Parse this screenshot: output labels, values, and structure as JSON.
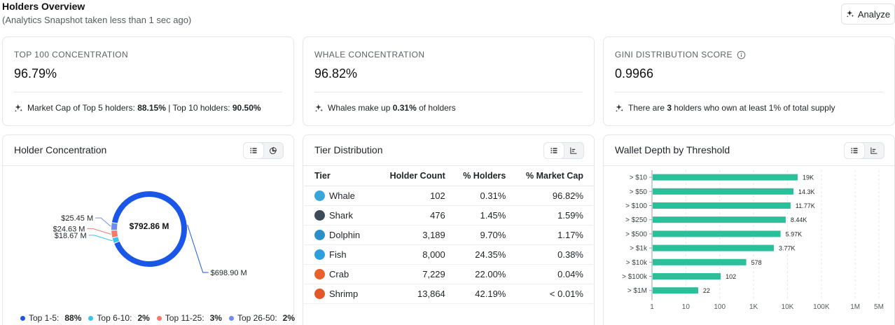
{
  "header": {
    "title": "Holders Overview",
    "subtitle": "(Analytics Snapshot taken less than 1 sec ago)",
    "analyze_label": "Analyze"
  },
  "stats": [
    {
      "label": "TOP 100 CONCENTRATION",
      "value": "96.79%",
      "note": {
        "t1": "Market Cap of Top 5 holders: ",
        "b1": "88.15%",
        "t2": " | Top 10 holders: ",
        "b2": "90.50%",
        "t3": ""
      }
    },
    {
      "label": "WHALE CONCENTRATION",
      "value": "96.82%",
      "note": {
        "t1": "Whales make up ",
        "b1": "0.31%",
        "t2": " of holders",
        "b2": "",
        "t3": ""
      }
    },
    {
      "label": "GINI DISTRIBUTION SCORE",
      "value": "0.9966",
      "note": {
        "t1": "There are ",
        "b1": "3",
        "t2": " holders who own at least 1% of total supply",
        "b2": "",
        "t3": ""
      }
    }
  ],
  "concentration": {
    "title": "Holder Concentration",
    "center_label": "$792.86 M",
    "callouts": [
      "$25.45 M",
      "$24.63 M",
      "$18.67 M",
      "$698.90 M"
    ],
    "legend": [
      {
        "label": "Top 1-5:",
        "value": "88%",
        "color": "#1a56e8"
      },
      {
        "label": "Top 6-10:",
        "value": "2%",
        "color": "#38c3f0"
      },
      {
        "label": "Top 11-25:",
        "value": "3%",
        "color": "#f47a6b"
      },
      {
        "label": "Top 26-50:",
        "value": "2%",
        "color": "#6f8cf2"
      }
    ]
  },
  "tiers": {
    "title": "Tier Distribution",
    "columns": [
      "Tier",
      "Holder Count",
      "% Holders",
      "% Market Cap"
    ],
    "rows": [
      {
        "name": "Whale",
        "count": "102",
        "pct_holders": "0.31%",
        "pct_mcap": "96.82%",
        "icon": "whale-icon",
        "color": "#3aa5d8"
      },
      {
        "name": "Shark",
        "count": "476",
        "pct_holders": "1.45%",
        "pct_mcap": "1.59%",
        "icon": "shark-icon",
        "color": "#3d4a57"
      },
      {
        "name": "Dolphin",
        "count": "3,189",
        "pct_holders": "9.70%",
        "pct_mcap": "1.17%",
        "icon": "dolphin-icon",
        "color": "#2b8fc9"
      },
      {
        "name": "Fish",
        "count": "8,000",
        "pct_holders": "24.35%",
        "pct_mcap": "0.38%",
        "icon": "fish-icon",
        "color": "#2f9fdc"
      },
      {
        "name": "Crab",
        "count": "7,229",
        "pct_holders": "22.00%",
        "pct_mcap": "0.04%",
        "icon": "crab-icon",
        "color": "#e8612c"
      },
      {
        "name": "Shrimp",
        "count": "13,864",
        "pct_holders": "42.19%",
        "pct_mcap": "< 0.01%",
        "icon": "shrimp-icon",
        "color": "#e2582a"
      }
    ]
  },
  "chart_data": [
    {
      "type": "pie",
      "categories": [
        "Top 1-5",
        "Top 6-10",
        "Top 11-25",
        "Top 26-50"
      ],
      "values": [
        698.9,
        18.67,
        24.63,
        25.45
      ],
      "slice_labels": [
        "$698.90 M",
        "$18.67 M",
        "$24.63 M",
        "$25.45 M"
      ],
      "percent_labels": [
        "88%",
        "2%",
        "3%",
        "2%"
      ],
      "colors": [
        "#1a56e8",
        "#38c3f0",
        "#f47a6b",
        "#6f8cf2"
      ],
      "total_label": "$792.86 M",
      "legend_position": "bottom"
    },
    {
      "type": "bar",
      "title": "Wallet Depth by Threshold",
      "orientation": "horizontal",
      "categories": [
        "> $10",
        "> $50",
        "> $100",
        "> $250",
        "> $500",
        "> $1k",
        "> $10k",
        "> $100k",
        "> $1M"
      ],
      "values": [
        19000,
        14300,
        11770,
        8440,
        5970,
        3770,
        578,
        102,
        22
      ],
      "value_labels": [
        "19K",
        "14.3K",
        "11.77K",
        "8.44K",
        "5.97K",
        "3.77K",
        "578",
        "102",
        "22"
      ],
      "x_scale": "log",
      "x_ticks": [
        "1",
        "10",
        "100",
        "1K",
        "10K",
        "100K",
        "1M",
        "5M"
      ],
      "x_tick_values": [
        1,
        10,
        100,
        1000,
        10000,
        100000,
        1000000,
        5000000
      ],
      "xlim": [
        1,
        5000000
      ],
      "bar_color": "#2bbf9a",
      "grid": true
    }
  ]
}
